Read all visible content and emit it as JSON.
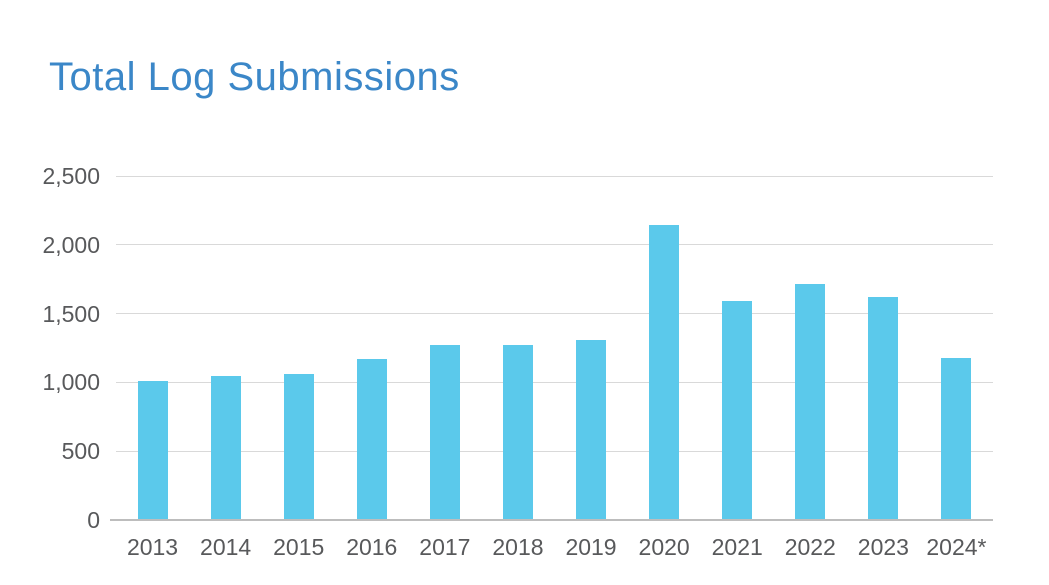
{
  "header": {
    "title": "Total Log Submissions",
    "title_color": "#3B87C8"
  },
  "chart_data": {
    "type": "bar",
    "title": "Total Log Submissions",
    "categories": [
      "2013",
      "2014",
      "2015",
      "2016",
      "2017",
      "2018",
      "2019",
      "2020",
      "2021",
      "2022",
      "2023",
      "2024*"
    ],
    "values": [
      1000,
      1040,
      1055,
      1165,
      1265,
      1265,
      1300,
      2140,
      1585,
      1705,
      1615,
      1170
    ],
    "xlabel": "",
    "ylabel": "",
    "ylim": [
      0,
      2500
    ],
    "y_ticks": [
      0,
      500,
      1000,
      1500,
      2000,
      2500
    ],
    "y_tick_labels": [
      "0",
      "500",
      "1,000",
      "1,500",
      "2,000",
      "2,500"
    ],
    "grid": true,
    "legend": false,
    "bar_color": "#5BC9EB",
    "gridline_color": "#D9D9D9",
    "baseline_color": "#BDBDBD",
    "axis_label_color": "#58595B"
  }
}
